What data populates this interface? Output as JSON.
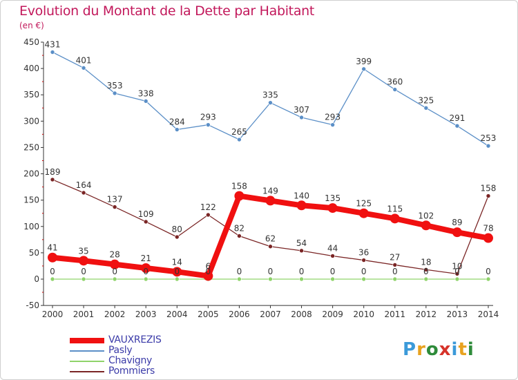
{
  "title": "Evolution du Montant de la Dette par Habitant",
  "unit": "(en €)",
  "brand": {
    "text": "Proxiti",
    "letters": [
      {
        "char": "P",
        "color": "#3b9ad9"
      },
      {
        "char": "r",
        "color": "#e8a21f"
      },
      {
        "char": "o",
        "color": "#2e8b3a"
      },
      {
        "char": "x",
        "color": "#d6332a"
      },
      {
        "char": "i",
        "color": "#3b9ad9"
      },
      {
        "char": "t",
        "color": "#e8a21f"
      },
      {
        "char": "i",
        "color": "#2e8b3a"
      }
    ]
  },
  "chart_data": {
    "type": "line",
    "ylim": [
      -50,
      450
    ],
    "yticks": [
      -50,
      0,
      50,
      100,
      150,
      200,
      250,
      300,
      350,
      400,
      450
    ],
    "x": [
      "2000",
      "2001",
      "2002",
      "2003",
      "2004",
      "2005",
      "2006",
      "2007",
      "2008",
      "2009",
      "2010",
      "2011",
      "2012",
      "2013",
      "2014"
    ],
    "series": [
      {
        "name": "Pasly",
        "color": "#5b8fc7",
        "values": [
          431,
          401,
          353,
          338,
          284,
          293,
          265,
          335,
          307,
          293,
          399,
          360,
          325,
          291,
          253
        ],
        "labels": [
          "431",
          "401",
          "353",
          "338",
          "284",
          "293",
          "265",
          "335",
          "307",
          "293",
          "399",
          "360",
          "325",
          "291",
          "253"
        ]
      },
      {
        "name": "Chavigny",
        "color": "#8fd36a",
        "values": [
          0,
          0,
          0,
          0,
          0,
          0,
          0,
          0,
          0,
          0,
          0,
          0,
          0,
          0,
          0
        ],
        "labels": [
          "0",
          "0",
          "0",
          "0",
          "0",
          "0",
          "0",
          "0",
          "0",
          "0",
          "0",
          "0",
          "0",
          "0",
          "0"
        ]
      },
      {
        "name": "Pommiers",
        "color": "#7a2525",
        "values": [
          189,
          164,
          137,
          109,
          80,
          122,
          82,
          62,
          54,
          44,
          36,
          27,
          18,
          10,
          158
        ],
        "labels": [
          "189",
          "164",
          "137",
          "109",
          "80",
          "122",
          "82",
          "62",
          "54",
          "44",
          "36",
          "27",
          "18",
          "10",
          "158"
        ]
      },
      {
        "name": "VAUXREZIS",
        "color": "#f01010",
        "values": [
          41,
          35,
          28,
          21,
          14,
          6,
          158,
          149,
          140,
          135,
          125,
          115,
          102,
          89,
          78
        ],
        "labels": [
          "41",
          "35",
          "28",
          "21",
          "14",
          "6",
          "158",
          "149",
          "140",
          "135",
          "125",
          "115",
          "102",
          "89",
          "78"
        ]
      }
    ],
    "legend_order": [
      "VAUXREZIS",
      "Pasly",
      "Chavigny",
      "Pommiers"
    ],
    "grid": false,
    "legend_position": "bottom-left"
  }
}
